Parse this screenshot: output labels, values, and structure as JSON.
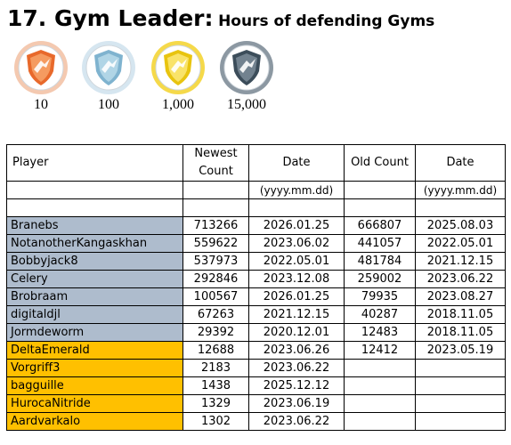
{
  "title": {
    "main": "17. Gym Leader:",
    "sub": "Hours of defending Gyms"
  },
  "badges": [
    {
      "label": "10",
      "tier": "bronze",
      "icon": "bronze-gym-badge-icon",
      "ring": "#f4c9b0",
      "shield": "#e8692b",
      "inner": "#f7a46a"
    },
    {
      "label": "100",
      "tier": "silver",
      "icon": "silver-gym-badge-icon",
      "ring": "#d6e6f0",
      "shield": "#7fb3cf",
      "inner": "#b9dbea"
    },
    {
      "label": "1,000",
      "tier": "gold",
      "icon": "gold-gym-badge-icon",
      "ring": "#f5d94a",
      "shield": "#e8c40f",
      "inner": "#fbe979"
    },
    {
      "label": "15,000",
      "tier": "platinum",
      "icon": "platinum-gym-badge-icon",
      "ring": "#8c98a2",
      "shield": "#3c4d5a",
      "inner": "#7b8c99"
    }
  ],
  "table": {
    "headers": {
      "player": "Player",
      "newest_count": "Newest Count",
      "date": "Date",
      "old_count": "Old Count",
      "old_date": "Date"
    },
    "date_format": "(yyyy.mm.dd)",
    "rows": [
      {
        "player": "Branebs",
        "newest": "713266",
        "date": "2026.01.25",
        "old": "666807",
        "old_date": "2025.08.03",
        "tier": "grey"
      },
      {
        "player": "NotanotherKangaskhan",
        "newest": "559622",
        "date": "2023.06.02",
        "old": "441057",
        "old_date": "2022.05.01",
        "tier": "grey"
      },
      {
        "player": "Bobbyjack8",
        "newest": "537973",
        "date": "2022.05.01",
        "old": "481784",
        "old_date": "2021.12.15",
        "tier": "grey"
      },
      {
        "player": "Celery",
        "newest": "292846",
        "date": "2023.12.08",
        "old": "259002",
        "old_date": "2023.06.22",
        "tier": "grey"
      },
      {
        "player": "Brobraam",
        "newest": "100567",
        "date": "2026.01.25",
        "old": "79935",
        "old_date": "2023.08.27",
        "tier": "grey"
      },
      {
        "player": "digitaldjl",
        "newest": "67263",
        "date": "2021.12.15",
        "old": "40287",
        "old_date": "2018.11.05",
        "tier": "grey"
      },
      {
        "player": "Jormdeworm",
        "newest": "29392",
        "date": "2020.12.01",
        "old": "12483",
        "old_date": "2018.11.05",
        "tier": "grey"
      },
      {
        "player": "DeltaEmerald",
        "newest": "12688",
        "date": "2023.06.26",
        "old": "12412",
        "old_date": "2023.05.19",
        "tier": "gold"
      },
      {
        "player": "Vorgriff3",
        "newest": "2183",
        "date": "2023.06.22",
        "old": "",
        "old_date": "",
        "tier": "gold"
      },
      {
        "player": "bagguille",
        "newest": "1438",
        "date": "2025.12.12",
        "old": "",
        "old_date": "",
        "tier": "gold"
      },
      {
        "player": "HurocaNitride",
        "newest": "1329",
        "date": "2023.06.19",
        "old": "",
        "old_date": "",
        "tier": "gold"
      },
      {
        "player": "Aardvarkalo",
        "newest": "1302",
        "date": "2023.06.22",
        "old": "",
        "old_date": "",
        "tier": "gold"
      }
    ]
  }
}
